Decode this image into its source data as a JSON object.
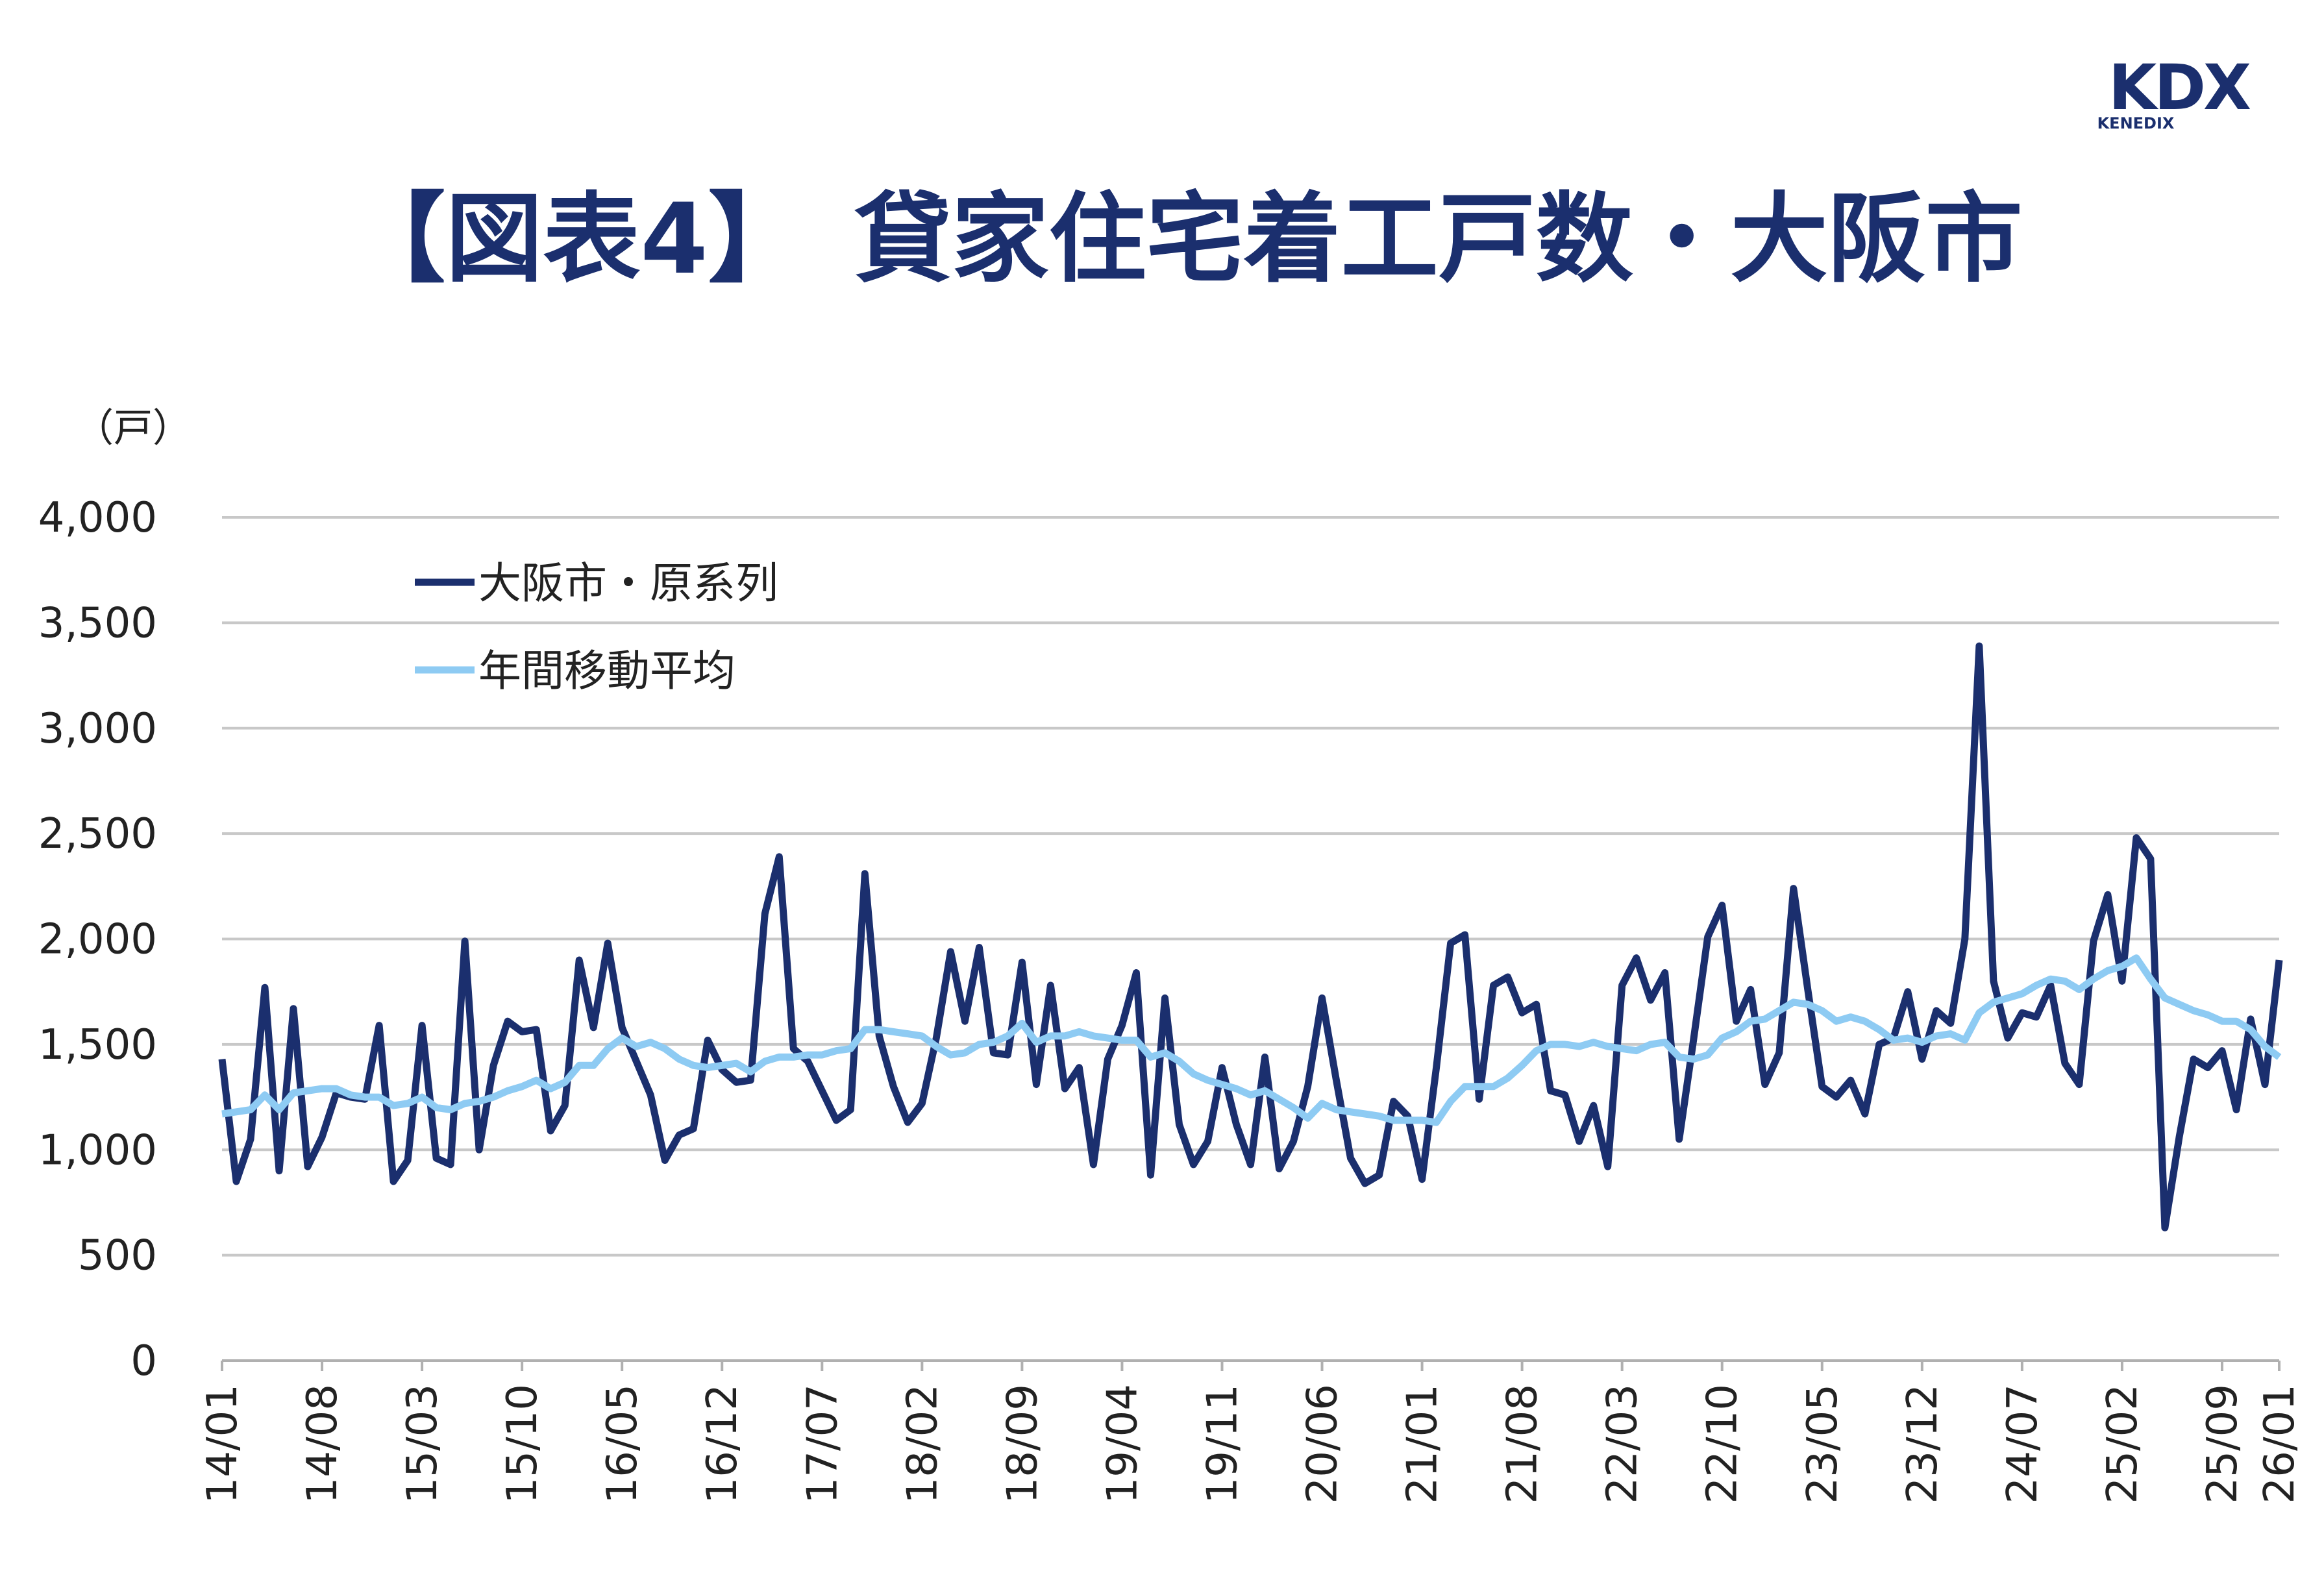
{
  "logo": {
    "mark": "KDX",
    "sub": "KENEDIX"
  },
  "chart_data": {
    "type": "line",
    "title": "【図表4】　貸家住宅着工戸数・大阪市",
    "y_unit_label": "（戸）",
    "categories": [
      "14/01",
      null,
      null,
      null,
      null,
      null,
      null,
      "14/08",
      null,
      null,
      null,
      null,
      null,
      null,
      "15/03",
      null,
      null,
      null,
      null,
      null,
      null,
      "15/10",
      null,
      null,
      null,
      null,
      null,
      null,
      "16/05",
      null,
      null,
      null,
      null,
      null,
      null,
      "16/12",
      null,
      null,
      null,
      null,
      null,
      null,
      "17/07",
      null,
      null,
      null,
      null,
      null,
      null,
      "18/02",
      null,
      null,
      null,
      null,
      null,
      null,
      "18/09",
      null,
      null,
      null,
      null,
      null,
      null,
      "19/04",
      null,
      null,
      null,
      null,
      null,
      null,
      "19/11",
      null,
      null,
      null,
      null,
      null,
      null,
      "20/06",
      null,
      null,
      null,
      null,
      null,
      null,
      "21/01",
      null,
      null,
      null,
      null,
      null,
      null,
      "21/08",
      null,
      null,
      null,
      null,
      null,
      null,
      "22/03",
      null,
      null,
      null,
      null,
      null,
      null,
      "22/10",
      null,
      null,
      null,
      null,
      null,
      null,
      "23/05",
      null,
      null,
      null,
      null,
      null,
      null,
      "23/12",
      null,
      null,
      null,
      null,
      null,
      null,
      "24/07",
      null,
      null,
      null,
      null,
      null,
      null,
      "25/02",
      null,
      null,
      null,
      null,
      null,
      null,
      "25/09",
      null,
      null,
      null,
      "26/01"
    ],
    "series": [
      {
        "name": "大阪市・原系列",
        "color": "#1b2f6e",
        "values": [
          1430,
          850,
          1050,
          1770,
          900,
          1670,
          920,
          1060,
          1270,
          1250,
          1240,
          1590,
          850,
          950,
          1590,
          960,
          930,
          1990,
          1000,
          1400,
          1610,
          1560,
          1570,
          1090,
          1210,
          1900,
          1580,
          1980,
          1580,
          1420,
          1260,
          950,
          1070,
          1100,
          1520,
          1380,
          1320,
          1330,
          2120,
          2390,
          1480,
          1420,
          1280,
          1140,
          1190,
          2310,
          1540,
          1300,
          1130,
          1220,
          1530,
          1940,
          1610,
          1960,
          1460,
          1450,
          1890,
          1310,
          1780,
          1290,
          1390,
          930,
          1430,
          1590,
          1840,
          880,
          1720,
          1120,
          930,
          1040,
          1390,
          1120,
          930,
          1440,
          910,
          1040,
          1300,
          1720,
          1330,
          960,
          840,
          880,
          1230,
          1160,
          860,
          1390,
          1980,
          2020,
          1240,
          1780,
          1820,
          1650,
          1690,
          1280,
          1260,
          1040,
          1210,
          920,
          1780,
          1910,
          1710,
          1840,
          1050,
          1520,
          2010,
          2160,
          1610,
          1760,
          1310,
          1460,
          2240,
          1760,
          1300,
          1250,
          1330,
          1170,
          1500,
          1530,
          1750,
          1430,
          1660,
          1600,
          2000,
          3390,
          1800,
          1530,
          1650,
          1630,
          1780,
          1410,
          1310,
          1990,
          2210,
          1800,
          2480,
          2380,
          630,
          1060,
          1430,
          1390,
          1470,
          1190,
          1620,
          1310,
          1900
        ]
      },
      {
        "name": "年間移動平均",
        "color": "#8ecbf3",
        "values": [
          1170,
          1180,
          1190,
          1260,
          1190,
          1270,
          1280,
          1290,
          1290,
          1260,
          1250,
          1250,
          1210,
          1220,
          1250,
          1200,
          1190,
          1220,
          1230,
          1250,
          1280,
          1300,
          1330,
          1290,
          1320,
          1400,
          1400,
          1480,
          1530,
          1490,
          1510,
          1480,
          1430,
          1400,
          1390,
          1400,
          1410,
          1370,
          1420,
          1440,
          1440,
          1450,
          1450,
          1470,
          1480,
          1570,
          1570,
          1560,
          1550,
          1540,
          1490,
          1450,
          1460,
          1500,
          1510,
          1540,
          1600,
          1510,
          1540,
          1540,
          1560,
          1540,
          1530,
          1520,
          1520,
          1440,
          1460,
          1420,
          1360,
          1330,
          1310,
          1290,
          1260,
          1280,
          1240,
          1200,
          1150,
          1220,
          1190,
          1180,
          1170,
          1160,
          1140,
          1140,
          1140,
          1130,
          1230,
          1300,
          1300,
          1300,
          1340,
          1400,
          1470,
          1500,
          1500,
          1490,
          1510,
          1490,
          1480,
          1470,
          1500,
          1510,
          1440,
          1430,
          1450,
          1530,
          1560,
          1610,
          1620,
          1660,
          1700,
          1690,
          1660,
          1610,
          1630,
          1610,
          1570,
          1520,
          1530,
          1510,
          1540,
          1550,
          1520,
          1650,
          1700,
          1720,
          1740,
          1780,
          1810,
          1800,
          1760,
          1810,
          1850,
          1870,
          1910,
          1810,
          1720,
          1690,
          1660,
          1640,
          1610,
          1610,
          1570,
          1490,
          1440
        ]
      }
    ],
    "ylim": [
      0,
      4000
    ],
    "yticks": [
      0,
      500,
      {
        "value": 1000,
        "label": "1,000"
      },
      {
        "value": 1500,
        "label": "1,500"
      },
      {
        "value": 2000,
        "label": "2,000"
      },
      {
        "value": 2500,
        "label": "2,500"
      },
      {
        "value": 3000,
        "label": "3,000"
      },
      {
        "value": 3500,
        "label": "3,500"
      },
      {
        "value": 4000,
        "label": "4,000"
      }
    ],
    "grid": true,
    "legend": "upper left"
  }
}
